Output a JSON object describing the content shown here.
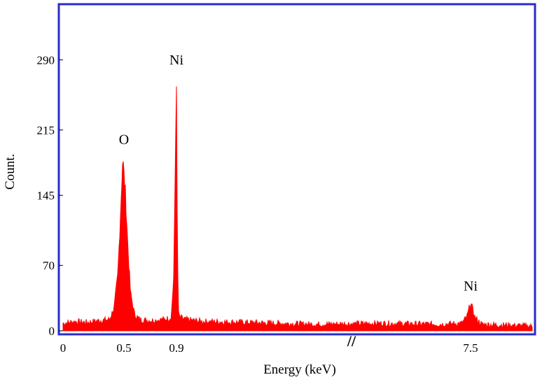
{
  "chart_data": {
    "type": "line",
    "title": "",
    "xlabel": "Energy (keV)",
    "ylabel": "Count.",
    "colors": {
      "frame": "#2b2bcc",
      "series": "#ff0000",
      "text": "#000000"
    },
    "y_ticks": [
      {
        "value": 0,
        "label": "0"
      },
      {
        "value": 70,
        "label": "70"
      },
      {
        "value": 145,
        "label": "145"
      },
      {
        "value": 215,
        "label": "215"
      },
      {
        "value": 290,
        "label": "290"
      }
    ],
    "x_ticks": [
      {
        "value": 0,
        "label": "0"
      },
      {
        "value": 0.5,
        "label": "0.5"
      },
      {
        "value": 0.9,
        "label": "0.9"
      },
      {
        "value": 7.5,
        "label": "7.5"
      }
    ],
    "axis_break": "//",
    "ylim": [
      0,
      345
    ],
    "series": [
      {
        "name": "",
        "points": [
          [
            0.0,
            8
          ],
          [
            0.1,
            10
          ],
          [
            0.2,
            9
          ],
          [
            0.3,
            11
          ],
          [
            0.38,
            12
          ],
          [
            0.42,
            25
          ],
          [
            0.45,
            60
          ],
          [
            0.47,
            120
          ],
          [
            0.49,
            185
          ],
          [
            0.51,
            150
          ],
          [
            0.53,
            90
          ],
          [
            0.55,
            40
          ],
          [
            0.58,
            18
          ],
          [
            0.62,
            12
          ],
          [
            0.7,
            11
          ],
          [
            0.8,
            12
          ],
          [
            0.86,
            14
          ],
          [
            0.88,
            60
          ],
          [
            0.9,
            272
          ],
          [
            0.92,
            80
          ],
          [
            0.95,
            15
          ],
          [
            1.1,
            12
          ],
          [
            1.5,
            10
          ],
          [
            2.5,
            9
          ],
          [
            4.0,
            7
          ],
          [
            5.5,
            8
          ],
          [
            6.8,
            7
          ],
          [
            7.3,
            8
          ],
          [
            7.42,
            15
          ],
          [
            7.5,
            30
          ],
          [
            7.58,
            14
          ],
          [
            7.7,
            7
          ],
          [
            8.2,
            6
          ],
          [
            8.6,
            5
          ]
        ]
      }
    ],
    "annotations": [
      {
        "text": "O",
        "x": 0.5,
        "y": 200
      },
      {
        "text": "Ni",
        "x": 0.9,
        "y": 285
      },
      {
        "text": "Ni",
        "x": 7.5,
        "y": 43
      }
    ]
  }
}
